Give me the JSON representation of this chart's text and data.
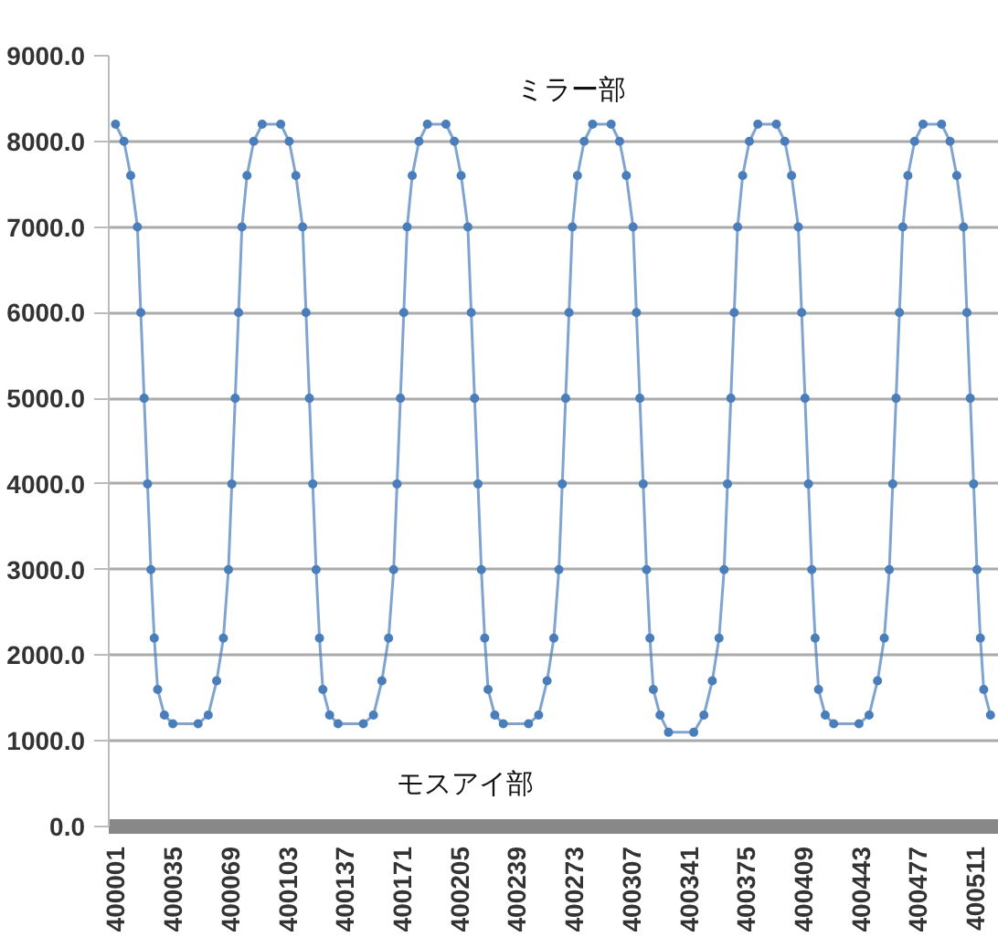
{
  "chart_data": {
    "type": "line",
    "color": "#4a7ebb",
    "marker": "circle",
    "grid": "y",
    "x": [
      400001,
      400006,
      400010,
      400014,
      400016,
      400018,
      400020,
      400022,
      400024,
      400026,
      400030,
      400035,
      400050,
      400056,
      400061,
      400065,
      400068,
      400070,
      400072,
      400074,
      400076,
      400079,
      400083,
      400088,
      400099,
      400104,
      400108,
      400112,
      400114,
      400116,
      400118,
      400120,
      400122,
      400124,
      400128,
      400133,
      400148,
      400154,
      400159,
      400163,
      400166,
      400168,
      400170,
      400172,
      400174,
      400177,
      400181,
      400186,
      400197,
      400202,
      400206,
      400210,
      400212,
      400214,
      400216,
      400218,
      400220,
      400222,
      400226,
      400231,
      400246,
      400252,
      400257,
      400261,
      400264,
      400266,
      400268,
      400270,
      400272,
      400275,
      400279,
      400284,
      400295,
      400300,
      400304,
      400308,
      400310,
      400312,
      400314,
      400316,
      400318,
      400320,
      400324,
      400329,
      400344,
      400350,
      400355,
      400359,
      400362,
      400364,
      400366,
      400368,
      400370,
      400373,
      400377,
      400382,
      400393,
      400398,
      400402,
      400406,
      400408,
      400410,
      400412,
      400414,
      400416,
      400418,
      400422,
      400427,
      400442,
      400448,
      400453,
      400457,
      400460,
      400462,
      400464,
      400466,
      400468,
      400471,
      400475,
      400480,
      400491,
      400496,
      400500,
      400504,
      400506,
      400508,
      400510,
      400512,
      400514,
      400516,
      400520
    ],
    "values": [
      8200,
      8000,
      7600,
      7000,
      6000,
      5000,
      4000,
      3000,
      2200,
      1600,
      1300,
      1200,
      1200,
      1300,
      1700,
      2200,
      3000,
      4000,
      5000,
      6000,
      7000,
      7600,
      8000,
      8200,
      8200,
      8000,
      7600,
      7000,
      6000,
      5000,
      4000,
      3000,
      2200,
      1600,
      1300,
      1200,
      1200,
      1300,
      1700,
      2200,
      3000,
      4000,
      5000,
      6000,
      7000,
      7600,
      8000,
      8200,
      8200,
      8000,
      7600,
      7000,
      6000,
      5000,
      4000,
      3000,
      2200,
      1600,
      1300,
      1200,
      1200,
      1300,
      1700,
      2200,
      3000,
      4000,
      5000,
      6000,
      7000,
      7600,
      8000,
      8200,
      8200,
      8000,
      7600,
      7000,
      6000,
      5000,
      4000,
      3000,
      2200,
      1600,
      1300,
      1100,
      1100,
      1300,
      1700,
      2200,
      3000,
      4000,
      5000,
      6000,
      7000,
      7600,
      8000,
      8200,
      8200,
      8000,
      7600,
      7000,
      6000,
      5000,
      4000,
      3000,
      2200,
      1600,
      1300,
      1200,
      1200,
      1300,
      1700,
      2200,
      3000,
      4000,
      5000,
      6000,
      7000,
      7600,
      8000,
      8200,
      8200,
      8000,
      7600,
      7000,
      6000,
      5000,
      4000,
      3000,
      2200,
      1600,
      1300
    ],
    "xlim": [
      399997,
      400525
    ],
    "xticks": [
      400001,
      400035,
      400069,
      400103,
      400137,
      400171,
      400205,
      400239,
      400273,
      400307,
      400341,
      400375,
      400409,
      400443,
      400477,
      400511
    ],
    "ylim": [
      0,
      9000
    ],
    "yticks": [
      {
        "value": 0,
        "label": "0.0"
      },
      {
        "value": 1000,
        "label": "1000.0"
      },
      {
        "value": 2000,
        "label": "2000.0"
      },
      {
        "value": 3000,
        "label": "3000.0"
      },
      {
        "value": 4000,
        "label": "4000.0"
      },
      {
        "value": 5000,
        "label": "5000.0"
      },
      {
        "value": 6000,
        "label": "6000.0"
      },
      {
        "value": 7000,
        "label": "7000.0"
      },
      {
        "value": 8000,
        "label": "8000.0"
      },
      {
        "value": 9000,
        "label": "9000.0"
      }
    ],
    "annotations": [
      "ミラー部",
      "モスアイ部"
    ]
  }
}
